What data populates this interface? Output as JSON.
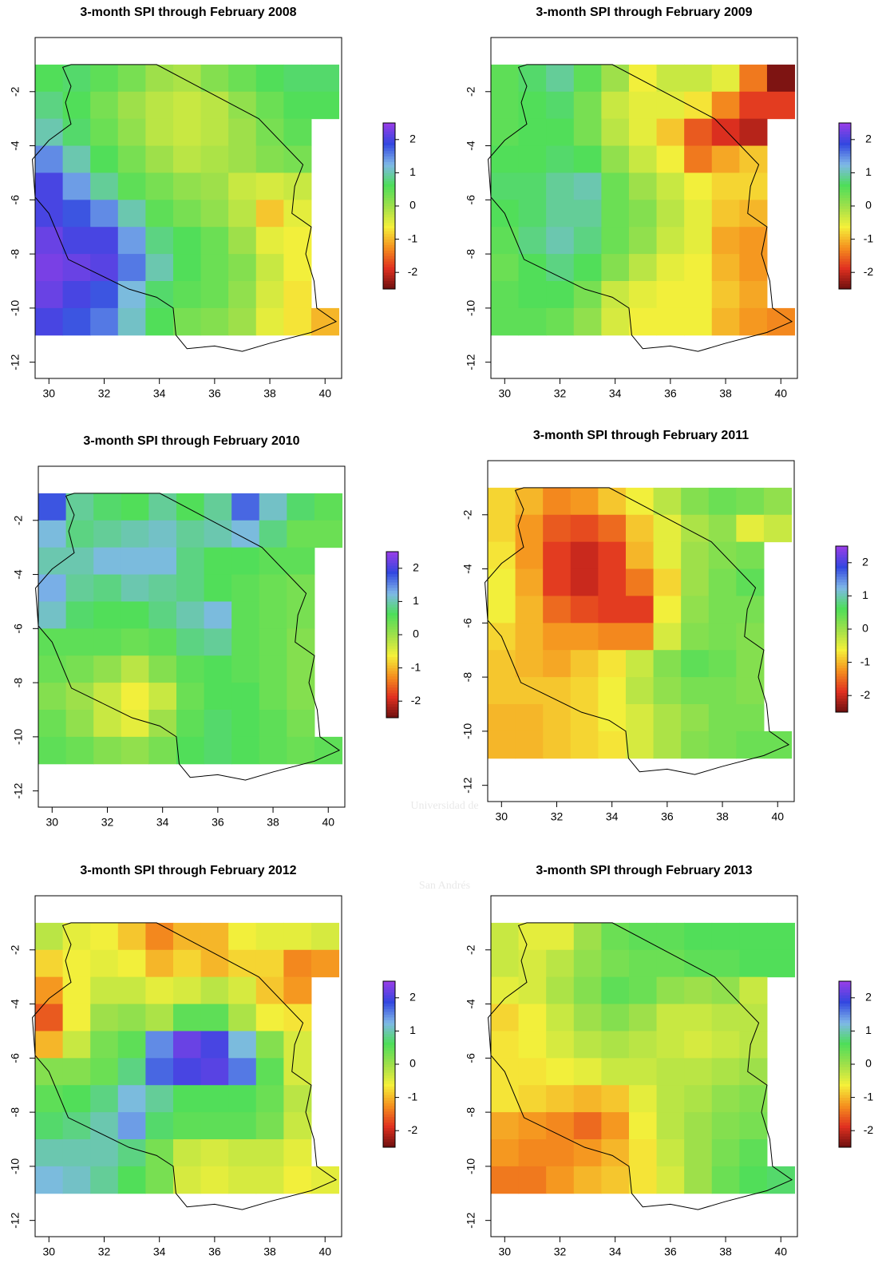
{
  "chart_data": [
    {
      "type": "heatmap",
      "title": "3-month SPI through February 2008",
      "x": [
        30,
        31,
        32,
        33,
        34,
        35,
        36,
        37,
        38,
        39,
        40
      ],
      "y": [
        -1.5,
        -2.5,
        -3.5,
        -4.5,
        -5.5,
        -6.5,
        -7.5,
        -8.5,
        -9.5,
        -10.5
      ],
      "z": [
        [
          0.6,
          0.7,
          0.5,
          0.3,
          0.0,
          -0.1,
          0.2,
          0.4,
          0.6,
          0.7,
          0.7
        ],
        [
          0.8,
          0.6,
          0.3,
          0.0,
          -0.2,
          -0.3,
          -0.2,
          0.1,
          0.4,
          0.6,
          0.6
        ],
        [
          1.0,
          0.7,
          0.4,
          0.1,
          -0.2,
          -0.3,
          -0.2,
          0.0,
          0.3,
          0.5,
          null
        ],
        [
          1.5,
          1.0,
          0.6,
          0.3,
          0.0,
          -0.2,
          -0.1,
          0.0,
          0.2,
          0.3,
          null
        ],
        [
          2.0,
          1.4,
          0.9,
          0.5,
          0.3,
          0.1,
          0.0,
          -0.3,
          -0.4,
          -0.3,
          null
        ],
        [
          2.0,
          1.8,
          1.5,
          1.0,
          0.5,
          0.3,
          0.1,
          -0.2,
          -0.9,
          -0.5,
          null
        ],
        [
          2.2,
          2.0,
          2.0,
          1.4,
          0.8,
          0.6,
          0.4,
          0.0,
          -0.5,
          -0.6,
          null
        ],
        [
          2.3,
          2.2,
          2.1,
          1.6,
          1.0,
          0.6,
          0.4,
          0.2,
          -0.3,
          -0.6,
          null
        ],
        [
          2.2,
          2.0,
          1.8,
          1.2,
          0.7,
          0.5,
          0.4,
          0.1,
          -0.4,
          -0.7,
          null
        ],
        [
          2.0,
          1.8,
          1.6,
          1.1,
          0.6,
          0.3,
          0.2,
          0.0,
          -0.5,
          -0.7,
          -1.0
        ]
      ],
      "xlim": [
        29.5,
        40.6
      ],
      "ylim": [
        -12.6,
        0
      ],
      "xticks": [
        30,
        32,
        34,
        36,
        38,
        40
      ],
      "yticks": [
        -12,
        -10,
        -8,
        -6,
        -4,
        -2
      ],
      "colorbar": {
        "lim": [
          -2.5,
          2.5
        ],
        "ticks": [
          -2,
          -1,
          0,
          1,
          2
        ],
        "colors": [
          "#6b0f0f",
          "#e03020",
          "#f5901e",
          "#f5f03a",
          "#9ee04a",
          "#4ede5a",
          "#7fb8e8",
          "#3347e0",
          "#9a3de8"
        ]
      }
    },
    {
      "type": "heatmap",
      "title": "3-month SPI through February 2009",
      "x": [
        30,
        31,
        32,
        33,
        34,
        35,
        36,
        37,
        38,
        39,
        40
      ],
      "y": [
        -1.5,
        -2.5,
        -3.5,
        -4.5,
        -5.5,
        -6.5,
        -7.5,
        -8.5,
        -9.5,
        -10.5
      ],
      "z": [
        [
          0.5,
          0.7,
          0.9,
          0.5,
          0.0,
          -0.6,
          -0.3,
          -0.3,
          -0.5,
          -1.4,
          -2.4
        ],
        [
          0.5,
          0.6,
          0.7,
          0.3,
          -0.3,
          -0.5,
          -0.5,
          -0.7,
          -1.3,
          -1.8,
          -1.8
        ],
        [
          0.5,
          0.6,
          0.6,
          0.3,
          -0.2,
          -0.5,
          -0.9,
          -1.6,
          -1.9,
          -2.1,
          null
        ],
        [
          0.6,
          0.6,
          0.7,
          0.6,
          0.1,
          -0.3,
          -0.6,
          -1.4,
          -1.1,
          -0.9,
          null
        ],
        [
          0.7,
          0.7,
          0.9,
          1.0,
          0.4,
          0.0,
          -0.3,
          -0.6,
          -0.8,
          -0.8,
          null
        ],
        [
          0.6,
          0.7,
          0.9,
          0.9,
          0.4,
          0.2,
          -0.2,
          -0.5,
          -0.9,
          -1.0,
          null
        ],
        [
          0.5,
          0.8,
          1.0,
          0.8,
          0.4,
          0.1,
          -0.3,
          -0.5,
          -1.1,
          -1.2,
          null
        ],
        [
          0.4,
          0.6,
          0.8,
          0.6,
          0.2,
          -0.2,
          -0.5,
          -0.6,
          -1.0,
          -1.2,
          null
        ],
        [
          0.5,
          0.6,
          0.6,
          0.3,
          -0.3,
          -0.5,
          -0.6,
          -0.6,
          -0.9,
          -1.1,
          null
        ],
        [
          0.5,
          0.5,
          0.4,
          0.1,
          -0.4,
          -0.6,
          -0.6,
          -0.6,
          -1.0,
          -1.2,
          -1.3
        ]
      ],
      "xlim": [
        29.5,
        40.6
      ],
      "ylim": [
        -12.6,
        0
      ],
      "xticks": [
        30,
        32,
        34,
        36,
        38,
        40
      ],
      "yticks": [
        -12,
        -10,
        -8,
        -6,
        -4,
        -2
      ],
      "colorbar": {
        "lim": [
          -2.5,
          2.5
        ],
        "ticks": [
          -2,
          -1,
          0,
          1,
          2
        ],
        "colors": [
          "#6b0f0f",
          "#e03020",
          "#f5901e",
          "#f5f03a",
          "#9ee04a",
          "#4ede5a",
          "#7fb8e8",
          "#3347e0",
          "#9a3de8"
        ]
      }
    },
    {
      "type": "heatmap",
      "title": "3-month SPI through February 2010",
      "x": [
        30,
        31,
        32,
        33,
        34,
        35,
        36,
        37,
        38,
        39,
        40
      ],
      "y": [
        -1.5,
        -2.5,
        -3.5,
        -4.5,
        -5.5,
        -6.5,
        -7.5,
        -8.5,
        -9.5,
        -10.5
      ],
      "z": [
        [
          1.8,
          0.9,
          0.7,
          0.6,
          0.9,
          0.6,
          0.9,
          1.7,
          1.1,
          0.7,
          0.5
        ],
        [
          1.2,
          0.8,
          0.9,
          1.0,
          1.1,
          0.9,
          1.0,
          1.2,
          0.8,
          0.4,
          0.4
        ],
        [
          1.0,
          1.0,
          1.2,
          1.2,
          1.2,
          0.8,
          0.6,
          0.6,
          0.5,
          0.5,
          null
        ],
        [
          1.3,
          0.9,
          0.8,
          1.0,
          0.9,
          0.8,
          0.6,
          0.5,
          0.4,
          0.3,
          null
        ],
        [
          1.1,
          0.7,
          0.6,
          0.6,
          0.8,
          1.0,
          1.2,
          0.5,
          0.4,
          0.3,
          null
        ],
        [
          0.5,
          0.5,
          0.5,
          0.4,
          0.5,
          0.8,
          0.9,
          0.5,
          0.4,
          0.2,
          null
        ],
        [
          0.4,
          0.3,
          0.1,
          -0.2,
          0.2,
          0.5,
          0.6,
          0.5,
          0.4,
          0.2,
          null
        ],
        [
          0.2,
          0.0,
          -0.3,
          -0.6,
          -0.3,
          0.4,
          0.6,
          0.6,
          0.4,
          0.2,
          null
        ],
        [
          0.4,
          0.1,
          -0.3,
          -0.5,
          0.0,
          0.5,
          0.7,
          0.6,
          0.5,
          0.3,
          null
        ],
        [
          0.5,
          0.4,
          0.2,
          0.1,
          0.3,
          0.6,
          0.7,
          0.6,
          0.5,
          0.4,
          0.5
        ]
      ],
      "xlim": [
        29.5,
        40.6
      ],
      "ylim": [
        -12.6,
        0
      ],
      "xticks": [
        30,
        32,
        34,
        36,
        38,
        40
      ],
      "yticks": [
        -12,
        -10,
        -8,
        -6,
        -4,
        -2
      ],
      "colorbar": {
        "lim": [
          -2.5,
          2.5
        ],
        "ticks": [
          -2,
          -1,
          0,
          1,
          2
        ],
        "colors": [
          "#6b0f0f",
          "#e03020",
          "#f5901e",
          "#f5f03a",
          "#9ee04a",
          "#4ede5a",
          "#7fb8e8",
          "#3347e0",
          "#9a3de8"
        ]
      }
    },
    {
      "type": "heatmap",
      "title": "3-month SPI through February 2011",
      "x": [
        30,
        31,
        32,
        33,
        34,
        35,
        36,
        37,
        38,
        39,
        40
      ],
      "y": [
        -1.5,
        -2.5,
        -3.5,
        -4.5,
        -5.5,
        -6.5,
        -7.5,
        -8.5,
        -9.5,
        -10.5
      ],
      "z": [
        [
          -0.8,
          -1.0,
          -1.3,
          -1.2,
          -0.9,
          -0.6,
          -0.2,
          0.2,
          0.4,
          0.3,
          0.1
        ],
        [
          -0.8,
          -1.2,
          -1.6,
          -1.7,
          -1.5,
          -0.9,
          -0.5,
          -0.1,
          0.1,
          -0.5,
          -0.3
        ],
        [
          -0.7,
          -1.2,
          -1.8,
          -2.0,
          -1.8,
          -1.0,
          -0.5,
          0.0,
          0.2,
          0.3,
          null
        ],
        [
          -0.6,
          -1.1,
          -1.8,
          -2.0,
          -1.8,
          -1.4,
          -0.8,
          0.0,
          0.3,
          0.5,
          null
        ],
        [
          -0.6,
          -1.0,
          -1.5,
          -1.7,
          -1.8,
          -1.8,
          -0.6,
          0.1,
          0.3,
          0.3,
          null
        ],
        [
          -0.8,
          -1.0,
          -1.2,
          -1.2,
          -1.3,
          -1.3,
          -0.4,
          0.2,
          0.3,
          0.2,
          null
        ],
        [
          -0.9,
          -1.0,
          -1.1,
          -0.9,
          -0.7,
          -0.3,
          0.2,
          0.5,
          0.4,
          0.2,
          null
        ],
        [
          -0.9,
          -0.9,
          -0.9,
          -0.8,
          -0.6,
          -0.2,
          0.1,
          0.3,
          0.3,
          0.2,
          null
        ],
        [
          -1.0,
          -1.0,
          -0.9,
          -0.8,
          -0.6,
          -0.4,
          -0.1,
          0.1,
          0.3,
          0.3,
          null
        ],
        [
          -1.0,
          -1.0,
          -0.9,
          -0.8,
          -0.7,
          -0.4,
          -0.1,
          0.2,
          0.3,
          0.4,
          0.4
        ]
      ],
      "xlim": [
        29.5,
        40.6
      ],
      "ylim": [
        -12.6,
        0
      ],
      "xticks": [
        30,
        32,
        34,
        36,
        38,
        40
      ],
      "yticks": [
        -12,
        -10,
        -8,
        -6,
        -4,
        -2
      ],
      "colorbar": {
        "lim": [
          -2.5,
          2.5
        ],
        "ticks": [
          -2,
          -1,
          0,
          1,
          2
        ],
        "colors": [
          "#6b0f0f",
          "#e03020",
          "#f5901e",
          "#f5f03a",
          "#9ee04a",
          "#4ede5a",
          "#7fb8e8",
          "#3347e0",
          "#9a3de8"
        ]
      }
    },
    {
      "type": "heatmap",
      "title": "3-month SPI through February 2012",
      "x": [
        30,
        31,
        32,
        33,
        34,
        35,
        36,
        37,
        38,
        39,
        40
      ],
      "y": [
        -1.5,
        -2.5,
        -3.5,
        -4.5,
        -5.5,
        -6.5,
        -7.5,
        -8.5,
        -9.5,
        -10.5
      ],
      "z": [
        [
          -0.2,
          -0.5,
          -0.6,
          -0.9,
          -1.3,
          -1.0,
          -1.0,
          -0.6,
          -0.5,
          -0.5,
          -0.4
        ],
        [
          -0.8,
          -0.6,
          -0.5,
          -0.6,
          -1.0,
          -0.8,
          -1.0,
          -0.8,
          -0.8,
          -1.3,
          -1.2
        ],
        [
          -1.2,
          -0.6,
          -0.3,
          -0.3,
          -0.5,
          -0.4,
          -0.2,
          -0.4,
          -0.9,
          -1.2,
          null
        ],
        [
          -1.6,
          -0.6,
          0.0,
          0.1,
          -0.1,
          0.5,
          0.5,
          -0.1,
          -0.6,
          -0.7,
          null
        ],
        [
          -1.0,
          -0.3,
          0.3,
          0.5,
          1.5,
          2.2,
          2.0,
          1.2,
          0.2,
          -0.4,
          null
        ],
        [
          0.2,
          0.2,
          0.4,
          0.8,
          1.7,
          2.0,
          2.1,
          1.6,
          0.5,
          -0.4,
          null
        ],
        [
          0.5,
          0.6,
          0.8,
          1.2,
          0.9,
          0.6,
          0.6,
          0.6,
          0.4,
          -0.2,
          null
        ],
        [
          0.7,
          0.8,
          1.0,
          1.4,
          0.7,
          0.5,
          0.5,
          0.5,
          0.3,
          -0.3,
          null
        ],
        [
          1.0,
          1.0,
          1.0,
          0.8,
          0.3,
          -0.3,
          -0.4,
          -0.3,
          -0.3,
          -0.5,
          null
        ],
        [
          1.2,
          1.1,
          0.9,
          0.6,
          0.3,
          -0.4,
          -0.5,
          -0.4,
          -0.4,
          -0.6,
          -0.5
        ]
      ],
      "xlim": [
        29.5,
        40.6
      ],
      "ylim": [
        -12.6,
        0
      ],
      "xticks": [
        30,
        32,
        34,
        36,
        38,
        40
      ],
      "yticks": [
        -12,
        -10,
        -8,
        -6,
        -4,
        -2
      ],
      "colorbar": {
        "lim": [
          -2.5,
          2.5
        ],
        "ticks": [
          -2,
          -1,
          0,
          1,
          2
        ],
        "colors": [
          "#6b0f0f",
          "#e03020",
          "#f5901e",
          "#f5f03a",
          "#9ee04a",
          "#4ede5a",
          "#7fb8e8",
          "#3347e0",
          "#9a3de8"
        ]
      }
    },
    {
      "type": "heatmap",
      "title": "3-month SPI through February 2013",
      "x": [
        30,
        31,
        32,
        33,
        34,
        35,
        36,
        37,
        38,
        39,
        40
      ],
      "y": [
        -1.5,
        -2.5,
        -3.5,
        -4.5,
        -5.5,
        -6.5,
        -7.5,
        -8.5,
        -9.5,
        -10.5
      ],
      "z": [
        [
          -0.3,
          -0.5,
          -0.5,
          0.0,
          0.4,
          0.5,
          0.5,
          0.6,
          0.6,
          0.6,
          0.6
        ],
        [
          -0.3,
          -0.4,
          -0.2,
          0.1,
          0.3,
          0.4,
          0.4,
          0.5,
          0.5,
          0.6,
          0.6
        ],
        [
          -0.5,
          -0.4,
          -0.1,
          0.2,
          0.5,
          0.4,
          0.1,
          0.0,
          0.1,
          -0.3,
          null
        ],
        [
          -0.8,
          -0.6,
          -0.3,
          0.0,
          0.2,
          0.0,
          -0.3,
          -0.3,
          -0.2,
          -0.2,
          null
        ],
        [
          -0.7,
          -0.6,
          -0.4,
          -0.2,
          -0.1,
          -0.2,
          -0.3,
          -0.4,
          -0.3,
          -0.2,
          null
        ],
        [
          -0.7,
          -0.7,
          -0.6,
          -0.5,
          -0.3,
          -0.3,
          -0.2,
          -0.2,
          -0.1,
          0.0,
          null
        ],
        [
          -0.7,
          -0.8,
          -0.9,
          -1.0,
          -0.9,
          -0.5,
          -0.2,
          -0.1,
          0.1,
          0.2,
          null
        ],
        [
          -1.1,
          -1.2,
          -1.3,
          -1.5,
          -1.2,
          -0.6,
          -0.2,
          0.0,
          0.2,
          0.3,
          null
        ],
        [
          -1.2,
          -1.3,
          -1.3,
          -1.2,
          -1.0,
          -0.7,
          -0.3,
          0.0,
          0.3,
          0.5,
          null
        ],
        [
          -1.4,
          -1.4,
          -1.2,
          -1.0,
          -0.9,
          -0.7,
          -0.4,
          0.0,
          0.4,
          0.6,
          0.7
        ]
      ],
      "xlim": [
        29.5,
        40.6
      ],
      "ylim": [
        -12.6,
        0
      ],
      "xticks": [
        30,
        32,
        34,
        36,
        38,
        40
      ],
      "yticks": [
        -12,
        -10,
        -8,
        -6,
        -4,
        -2
      ],
      "colorbar": {
        "lim": [
          -2.5,
          2.5
        ],
        "ticks": [
          -2,
          -1,
          0,
          1,
          2
        ],
        "colors": [
          "#6b0f0f",
          "#e03020",
          "#f5901e",
          "#f5f03a",
          "#9ee04a",
          "#4ede5a",
          "#7fb8e8",
          "#3347e0",
          "#9a3de8"
        ]
      }
    }
  ],
  "watermark": [
    "Universidad de",
    "San Andrés"
  ]
}
